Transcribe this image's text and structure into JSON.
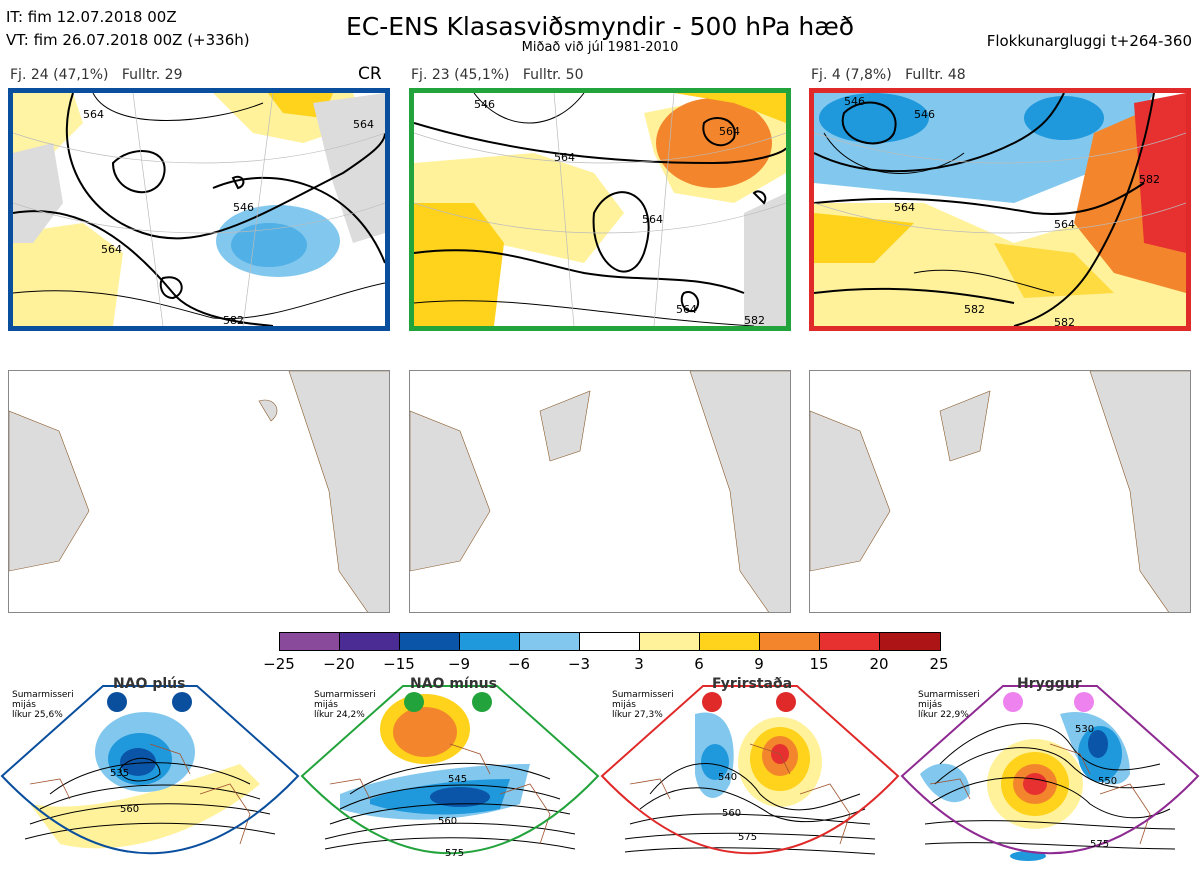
{
  "header": {
    "it": "IT: fim 12.07.2018 00Z",
    "vt": "VT: fim 26.07.2018 00Z  (+336h)",
    "title": "EC-ENS Klasasviðsmyndir - 500 hPa hæð",
    "subtitle": "Miðað við júl 1981-2010",
    "window": "Flokkunargluggi t+264-360"
  },
  "clusters": [
    {
      "label": "Fj. 24 (47,1%)",
      "fulltr": "Fulltr. 29",
      "border": "#0a4f9e",
      "contours": [
        "564",
        "546",
        "564",
        "564",
        "582"
      ]
    },
    {
      "label": "Fj. 23 (45,1%)",
      "fulltr": "Fulltr. 50",
      "border": "#22a33b",
      "contours": [
        "546",
        "564",
        "564",
        "564",
        "564",
        "582"
      ]
    },
    {
      "label": "Fj. 4 (7,8%)",
      "fulltr": "Fulltr. 48",
      "border": "#e02a2a",
      "contours": [
        "546",
        "546",
        "564",
        "564",
        "582",
        "582",
        "582"
      ]
    }
  ],
  "cr_label": "CR",
  "colorbar": {
    "colors": [
      "#8a4a9c",
      "#4a2c94",
      "#0a55a8",
      "#1f98dc",
      "#82c8ee",
      "#ffffff",
      "#fff29a",
      "#ffd21c",
      "#f3862c",
      "#e73131",
      "#ad1416"
    ],
    "ticks": [
      "−25",
      "−20",
      "−15",
      "−9",
      "−6",
      "−3",
      "3",
      "6",
      "9",
      "15",
      "20",
      "25"
    ]
  },
  "regimes": [
    {
      "name": "NAO plús",
      "info": [
        "Sumarmisseri",
        "mijás",
        "líkur 25,6%"
      ],
      "border": "#0a4f9e",
      "dot": "#0a4f9e",
      "contours": [
        "535",
        "560"
      ]
    },
    {
      "name": "NAO mínus",
      "info": [
        "Sumarmisseri",
        "mijás",
        "líkur 24,2%"
      ],
      "border": "#22a33b",
      "dot": "#22a33b",
      "contours": [
        "545",
        "560",
        "575"
      ]
    },
    {
      "name": "Fyrirstaða",
      "info": [
        "Sumarmisseri",
        "mijás",
        "líkur 27,3%"
      ],
      "border": "#e02a2a",
      "dot": "#e02a2a",
      "contours": [
        "540",
        "560",
        "575"
      ]
    },
    {
      "name": "Hryggur",
      "info": [
        "Sumarmisseri",
        "mijás",
        "líkur 22,9%"
      ],
      "border": "#8e2a92",
      "dot": "#ee82ee",
      "contours": [
        "530",
        "550",
        "575"
      ]
    }
  ]
}
